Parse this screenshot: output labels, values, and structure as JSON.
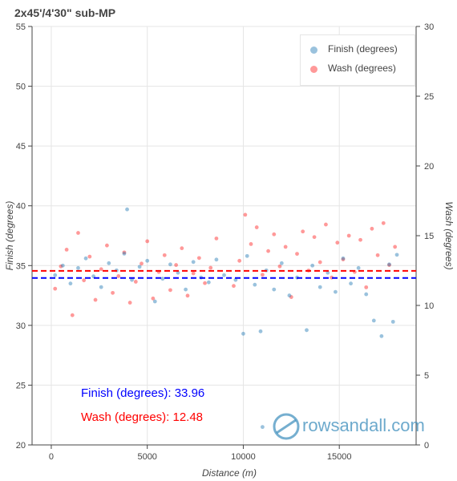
{
  "chart_title": "2x45'/4'30\" sub-MP",
  "legend": {
    "finish_label": "Finish (degrees)",
    "wash_label": "Wash (degrees)"
  },
  "stats": {
    "finish_text": "Finish (degrees): 33.96",
    "wash_text": "Wash (degrees): 12.48"
  },
  "watermark": "rowsandall.com",
  "colors": {
    "finish": "#1f77b4",
    "wash": "#ff0000",
    "finish_line": "#0000ff",
    "wash_line": "#ff0000"
  },
  "chart_data": {
    "type": "scatter",
    "xlabel": "Distance (m)",
    "ylabel": "Finish (degrees)",
    "y2label": "Wash (degrees)",
    "xlim": [
      -1000,
      19000
    ],
    "ylim": [
      20,
      55
    ],
    "y2lim": [
      0,
      30
    ],
    "x_ticks": [
      0,
      5000,
      10000,
      15000
    ],
    "y_ticks": [
      20,
      25,
      30,
      35,
      40,
      45,
      50,
      55
    ],
    "y2_ticks": [
      0,
      5,
      10,
      15,
      20,
      25,
      30
    ],
    "grid": true,
    "legend_position": "top-right",
    "series": [
      {
        "name": "Finish (degrees)",
        "axis": "left",
        "mean": 33.96,
        "points": [
          [
            200,
            34.2
          ],
          [
            600,
            35.0
          ],
          [
            1000,
            33.5
          ],
          [
            1400,
            34.8
          ],
          [
            1800,
            35.6
          ],
          [
            2200,
            34.1
          ],
          [
            2600,
            33.2
          ],
          [
            3000,
            35.2
          ],
          [
            3400,
            34.6
          ],
          [
            3800,
            36.0
          ],
          [
            3950,
            39.7
          ],
          [
            4200,
            33.8
          ],
          [
            4600,
            34.9
          ],
          [
            5000,
            35.4
          ],
          [
            5400,
            32.0
          ],
          [
            5800,
            33.9
          ],
          [
            6200,
            35.1
          ],
          [
            6600,
            34.4
          ],
          [
            7000,
            33.0
          ],
          [
            7400,
            35.3
          ],
          [
            7800,
            34.0
          ],
          [
            8200,
            33.6
          ],
          [
            8600,
            35.5
          ],
          [
            9000,
            34.2
          ],
          [
            9600,
            33.8
          ],
          [
            10000,
            29.3
          ],
          [
            10200,
            35.8
          ],
          [
            10600,
            33.4
          ],
          [
            10900,
            29.5
          ],
          [
            11200,
            34.6
          ],
          [
            11600,
            33.0
          ],
          [
            12000,
            35.2
          ],
          [
            12400,
            32.5
          ],
          [
            12800,
            34.0
          ],
          [
            13300,
            29.6
          ],
          [
            13600,
            35.0
          ],
          [
            14000,
            33.2
          ],
          [
            14400,
            34.4
          ],
          [
            14800,
            32.8
          ],
          [
            15200,
            35.6
          ],
          [
            15600,
            33.5
          ],
          [
            16000,
            34.8
          ],
          [
            16400,
            32.6
          ],
          [
            16800,
            30.4
          ],
          [
            17200,
            29.1
          ],
          [
            17600,
            35.1
          ],
          [
            17800,
            30.3
          ],
          [
            18000,
            35.9
          ],
          [
            11000,
            21.5
          ]
        ]
      },
      {
        "name": "Wash (degrees)",
        "axis": "right",
        "mean": 12.48,
        "points": [
          [
            200,
            11.2
          ],
          [
            500,
            12.8
          ],
          [
            800,
            14.0
          ],
          [
            1100,
            9.3
          ],
          [
            1400,
            15.2
          ],
          [
            1700,
            11.8
          ],
          [
            2000,
            13.5
          ],
          [
            2300,
            10.4
          ],
          [
            2600,
            12.6
          ],
          [
            2900,
            14.3
          ],
          [
            3200,
            10.9
          ],
          [
            3500,
            12.1
          ],
          [
            3800,
            13.8
          ],
          [
            4100,
            10.2
          ],
          [
            4400,
            11.7
          ],
          [
            4700,
            13.0
          ],
          [
            5000,
            14.6
          ],
          [
            5300,
            10.5
          ],
          [
            5600,
            12.4
          ],
          [
            5900,
            13.6
          ],
          [
            6200,
            11.1
          ],
          [
            6500,
            12.9
          ],
          [
            6800,
            14.1
          ],
          [
            7100,
            10.7
          ],
          [
            7400,
            12.3
          ],
          [
            7700,
            13.4
          ],
          [
            8000,
            11.6
          ],
          [
            8300,
            12.7
          ],
          [
            8600,
            14.8
          ],
          [
            9500,
            11.4
          ],
          [
            9800,
            13.2
          ],
          [
            10100,
            16.5
          ],
          [
            10400,
            14.4
          ],
          [
            10700,
            15.6
          ],
          [
            11000,
            12.2
          ],
          [
            11300,
            13.9
          ],
          [
            11600,
            15.1
          ],
          [
            11900,
            12.8
          ],
          [
            12200,
            14.2
          ],
          [
            12500,
            10.6
          ],
          [
            12800,
            13.7
          ],
          [
            13100,
            15.3
          ],
          [
            13400,
            12.5
          ],
          [
            13700,
            14.9
          ],
          [
            14000,
            13.1
          ],
          [
            14300,
            15.8
          ],
          [
            14600,
            12.0
          ],
          [
            14900,
            14.5
          ],
          [
            15200,
            13.3
          ],
          [
            15500,
            15.0
          ],
          [
            15800,
            12.4
          ],
          [
            16100,
            14.7
          ],
          [
            16400,
            11.3
          ],
          [
            16700,
            15.5
          ],
          [
            17000,
            13.6
          ],
          [
            17300,
            15.9
          ],
          [
            17600,
            12.9
          ],
          [
            17900,
            14.2
          ]
        ]
      }
    ]
  }
}
